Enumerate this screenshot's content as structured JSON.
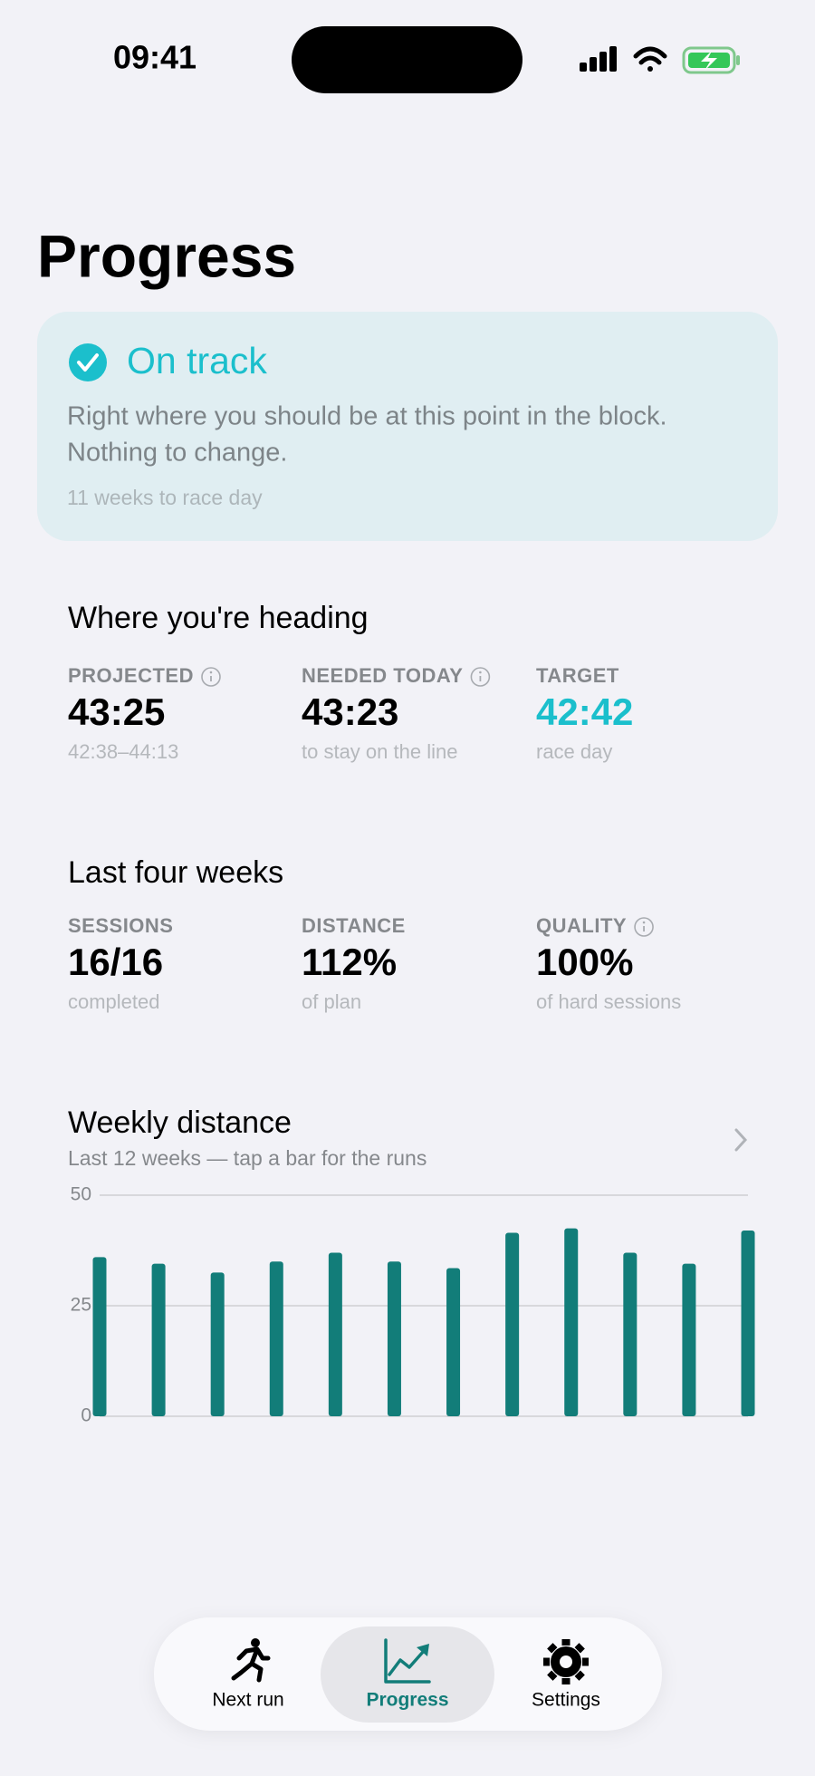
{
  "status_bar": {
    "time": "09:41"
  },
  "page": {
    "title": "Progress"
  },
  "status_card": {
    "status": "On track",
    "message_lines": [
      "Right where you should be at this point in the block.",
      "Nothing to change."
    ],
    "countdown": "11 weeks to race day"
  },
  "heading_section": {
    "title": "Where you're heading",
    "metrics": [
      {
        "label": "PROJECTED",
        "value": "43:25",
        "sub": "42:38–44:13",
        "info": true,
        "highlight": false
      },
      {
        "label": "NEEDED TODAY",
        "value": "43:23",
        "sub": "to stay on the line",
        "info": true,
        "highlight": false
      },
      {
        "label": "TARGET",
        "value": "42:42",
        "sub": "race day",
        "info": false,
        "highlight": true
      }
    ]
  },
  "weeks_section": {
    "title": "Last four weeks",
    "metrics": [
      {
        "label": "SESSIONS",
        "value": "16/16",
        "sub": "completed",
        "info": false,
        "highlight": false
      },
      {
        "label": "DISTANCE",
        "value": "112%",
        "sub": "of plan",
        "info": false,
        "highlight": false
      },
      {
        "label": "QUALITY",
        "value": "100%",
        "sub": "of hard sessions",
        "info": true,
        "highlight": false
      }
    ]
  },
  "chart_data": {
    "type": "bar",
    "title": "Weekly distance",
    "subtitle": "Last 12 weeks — tap a bar for the runs",
    "categories": [
      null,
      null,
      null,
      null,
      null,
      null,
      null,
      null,
      null,
      null,
      null,
      null
    ],
    "values": [
      36,
      34.5,
      32.5,
      35,
      37,
      35,
      33.5,
      41.5,
      42.5,
      37,
      34.5,
      42
    ],
    "color": "#127d79",
    "ylim": [
      0,
      50
    ],
    "yticks": [
      0,
      25,
      50
    ],
    "grid": true
  },
  "tab_bar": {
    "tabs": [
      {
        "label": "Next run",
        "selected": false
      },
      {
        "label": "Progress",
        "selected": true
      },
      {
        "label": "Settings",
        "selected": false
      }
    ]
  }
}
